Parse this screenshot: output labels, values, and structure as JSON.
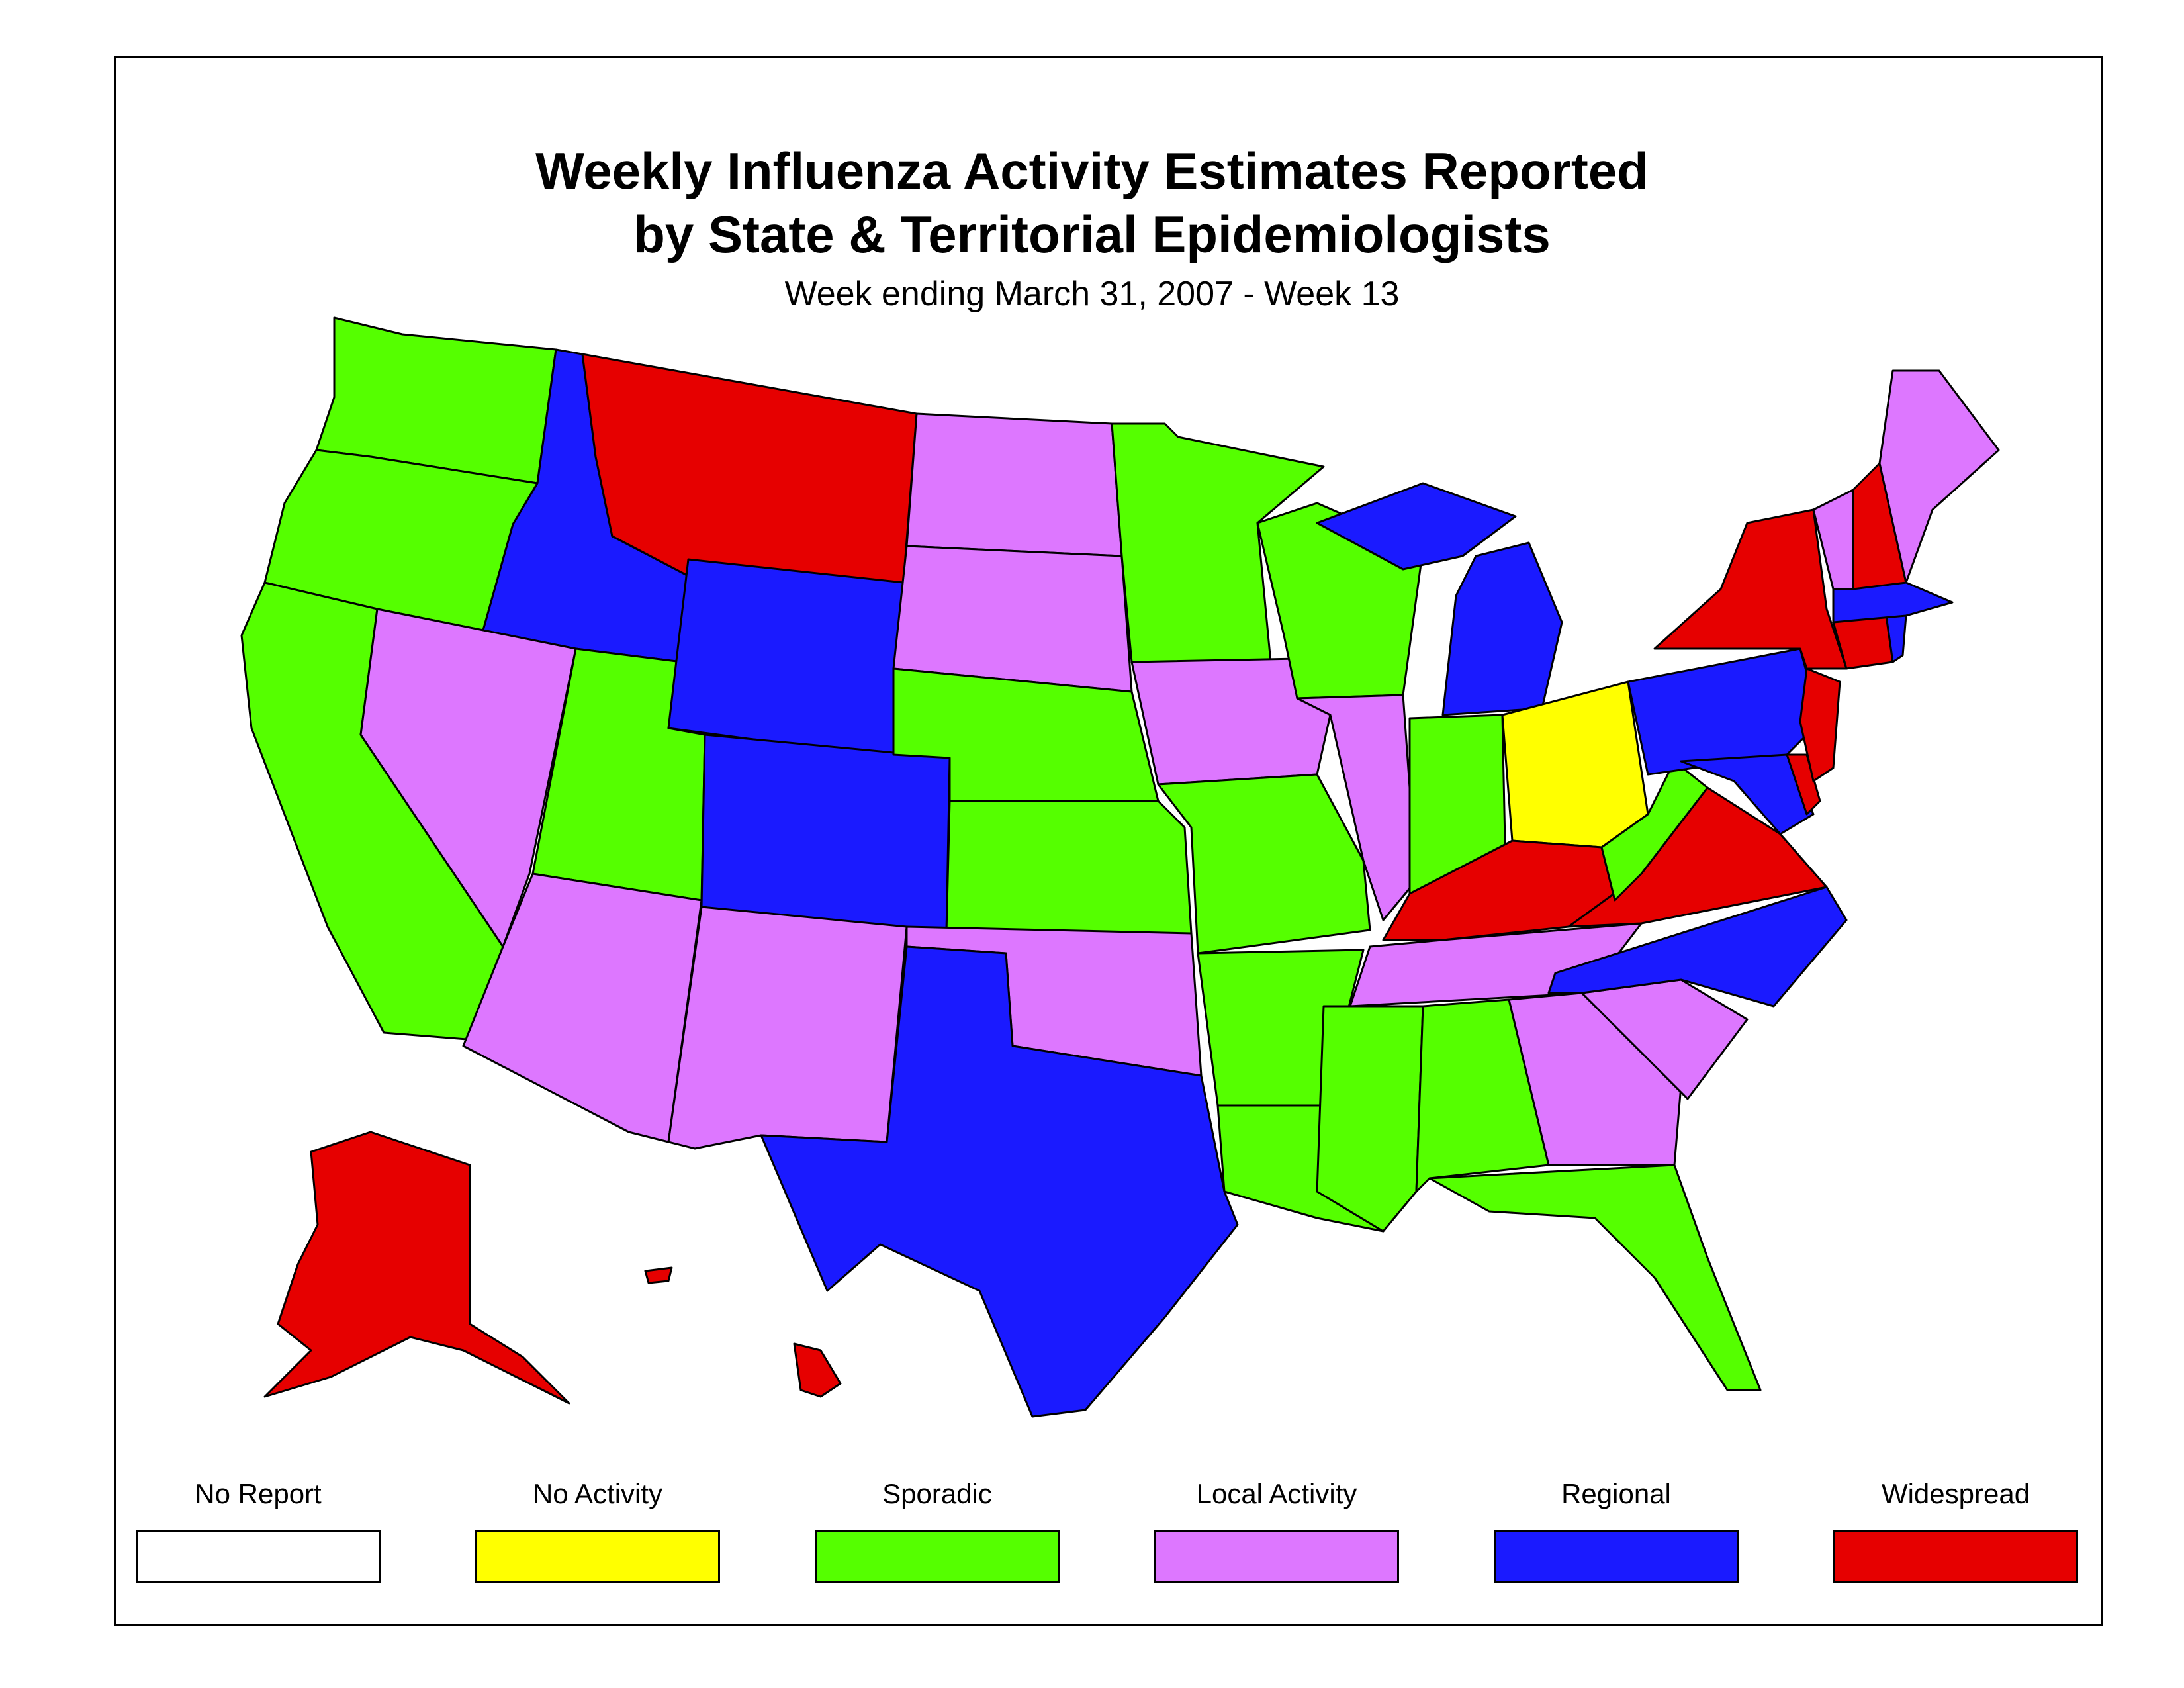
{
  "title_line1": "Weekly Influenza Activity Estimates Reported",
  "title_line2": "by State & Territorial Epidemiologists",
  "subtitle": "Week ending March 31, 2007 - Week 13",
  "legend": [
    {
      "label": "No Report",
      "color": "#ffffff"
    },
    {
      "label": "No Activity",
      "color": "#ffff00"
    },
    {
      "label": "Sporadic",
      "color": "#55ff00"
    },
    {
      "label": "Local Activity",
      "color": "#dd77ff"
    },
    {
      "label": "Regional",
      "color": "#1a1aff"
    },
    {
      "label": "Widespread",
      "color": "#e60000"
    }
  ],
  "states": {
    "WA": "Sporadic",
    "OR": "Sporadic",
    "CA": "Sporadic",
    "ID": "Regional",
    "NV": "Local Activity",
    "UT": "Sporadic",
    "AZ": "Local Activity",
    "MT": "Widespread",
    "WY": "Regional",
    "CO": "Regional",
    "NM": "Local Activity",
    "ND": "Local Activity",
    "SD": "Local Activity",
    "NE": "Sporadic",
    "KS": "Sporadic",
    "OK": "Local Activity",
    "TX": "Regional",
    "MN": "Sporadic",
    "IA": "Local Activity",
    "MO": "Sporadic",
    "AR": "Sporadic",
    "LA": "Sporadic",
    "WI": "Sporadic",
    "IL": "Local Activity",
    "MI": "Regional",
    "IN": "Sporadic",
    "OH": "No Activity",
    "KY": "Widespread",
    "TN": "Local Activity",
    "MS": "Sporadic",
    "AL": "Sporadic",
    "GA": "Local Activity",
    "FL": "Sporadic",
    "SC": "Local Activity",
    "NC": "Regional",
    "VA": "Widespread",
    "WV": "Sporadic",
    "MD": "Regional",
    "DE": "Widespread",
    "NJ": "Widespread",
    "PA": "Regional",
    "NY": "Widespread",
    "CT": "Widespread",
    "RI": "Regional",
    "MA": "Regional",
    "VT": "Local Activity",
    "NH": "Widespread",
    "ME": "Local Activity",
    "AK": "Widespread",
    "HI": "Widespread"
  }
}
